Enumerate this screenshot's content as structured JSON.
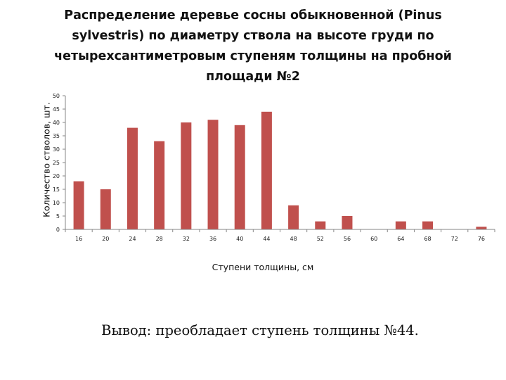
{
  "chart_data": {
    "type": "bar",
    "title": "Распределение деревье сосны обыкновенной (Pinus sylvestris) по диаметру ствола на высоте груди по четырехсантиметровым ступеням толщины на пробной площади №2",
    "xlabel": "Ступени толщины, см",
    "ylabel": "Количество стволов, шт.",
    "categories": [
      "16",
      "20",
      "24",
      "28",
      "32",
      "36",
      "40",
      "44",
      "48",
      "52",
      "56",
      "60",
      "64",
      "68",
      "72",
      "76"
    ],
    "values": [
      18,
      15,
      38,
      33,
      40,
      41,
      39,
      44,
      9,
      3,
      5,
      0,
      3,
      3,
      0,
      1
    ],
    "ylim": [
      0,
      50
    ],
    "yticks": [
      "0",
      "5",
      "10",
      "15",
      "20",
      "25",
      "30",
      "35",
      "40",
      "45",
      "50"
    ],
    "grid": false,
    "legend": "none",
    "bar_color": "#c0504d",
    "axis_color": "#868686"
  },
  "conclusion": "Вывод: преобладает ступень толщины №44."
}
